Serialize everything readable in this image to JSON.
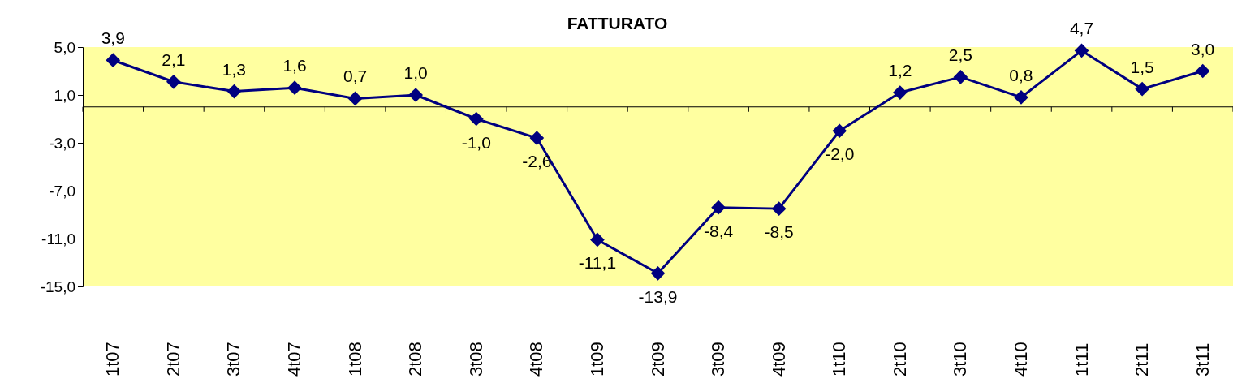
{
  "chart_data": {
    "type": "line",
    "title": "FATTURATO",
    "categories": [
      "1t07",
      "2t07",
      "3t07",
      "4t07",
      "1t08",
      "2t08",
      "3t08",
      "4t08",
      "1t09",
      "2t09",
      "3t09",
      "4t09",
      "1t10",
      "2t10",
      "3t10",
      "4t10",
      "1t11",
      "2t11",
      "3t11"
    ],
    "series": [
      {
        "color": "#000080",
        "values": [
          3.9,
          2.1,
          1.3,
          1.6,
          0.7,
          1.0,
          -1.0,
          -2.6,
          -11.1,
          -13.9,
          -8.4,
          -8.5,
          -2.0,
          1.2,
          2.5,
          0.8,
          4.7,
          1.5,
          3.0
        ],
        "value_labels": [
          "3,9",
          "2,1",
          "1,3",
          "1,6",
          "0,7",
          "1,0",
          "-1,0",
          "-2,6",
          "-11,1",
          "-13,9",
          "-8,4",
          "-8,5",
          "-2,0",
          "1,2",
          "2,5",
          "0,8",
          "4,7",
          "1,5",
          "3,0"
        ]
      }
    ],
    "ylim": [
      -15,
      5
    ],
    "yticks": [
      {
        "value": 5,
        "label": "5,0"
      },
      {
        "value": 1,
        "label": "1,0"
      },
      {
        "value": -3,
        "label": "-3,0"
      },
      {
        "value": -7,
        "label": "-7,0"
      },
      {
        "value": -11,
        "label": "-11,0"
      },
      {
        "value": -15,
        "label": "-15,0"
      }
    ],
    "marker": "diamond",
    "line_style": "solid",
    "grid": false
  }
}
